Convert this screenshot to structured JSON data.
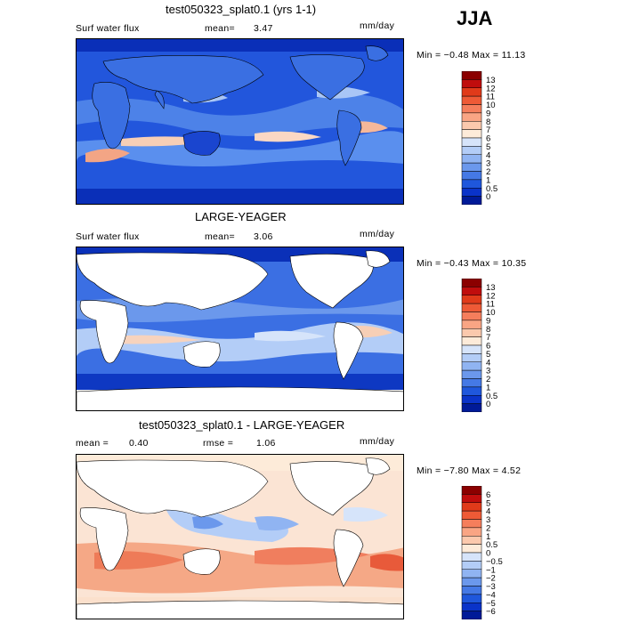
{
  "season": "JJA",
  "panels": [
    {
      "title": "test050323_splat0.1 (yrs 1-1)",
      "left_label": "Surf water flux",
      "mean_label": "mean=",
      "mean_value": "3.47",
      "units": "mm/day",
      "minmax": "Min =  −0.48 Max =  11.13",
      "colorbar": {
        "labels": [
          "13",
          "12",
          "11",
          "10",
          "9",
          "8",
          "7",
          "6",
          "5",
          "4",
          "3",
          "2",
          "1",
          "0.5",
          "0"
        ],
        "colors": [
          "#8b0000",
          "#c00d0d",
          "#e03a1a",
          "#ee5a36",
          "#f57e5c",
          "#f9a584",
          "#fbc9ad",
          "#fdebd9",
          "#d6e4fa",
          "#b3cdf7",
          "#90b4f2",
          "#6b98ec",
          "#4579e5",
          "#1f57dc",
          "#0a33c9",
          "#001a98"
        ]
      }
    },
    {
      "title": "LARGE-YEAGER",
      "left_label": "Surf water flux",
      "mean_label": "mean=",
      "mean_value": "3.06",
      "units": "mm/day",
      "minmax": "Min =  −0.43 Max =  10.35",
      "colorbar": {
        "labels": [
          "13",
          "12",
          "11",
          "10",
          "9",
          "8",
          "7",
          "6",
          "5",
          "4",
          "3",
          "2",
          "1",
          "0.5",
          "0"
        ],
        "colors": [
          "#8b0000",
          "#c00d0d",
          "#e03a1a",
          "#ee5a36",
          "#f57e5c",
          "#f9a584",
          "#fbc9ad",
          "#fdebd9",
          "#d6e4fa",
          "#b3cdf7",
          "#90b4f2",
          "#6b98ec",
          "#4579e5",
          "#1f57dc",
          "#0a33c9",
          "#001a98"
        ]
      }
    },
    {
      "title": "test050323_splat0.1 - LARGE-YEAGER",
      "mean_label": "mean =",
      "mean_value": "0.40",
      "rmse_label": "rmse =",
      "rmse_value": "1.06",
      "units": "mm/day",
      "minmax": "Min =  −7.80 Max =    4.52",
      "colorbar": {
        "labels": [
          "6",
          "5",
          "4",
          "3",
          "2",
          "1",
          "0.5",
          "0",
          "−0.5",
          "−1",
          "−2",
          "−3",
          "−4",
          "−5",
          "−6"
        ],
        "colors": [
          "#8b0000",
          "#c00d0d",
          "#e03a1a",
          "#ee5a36",
          "#f57e5c",
          "#f9a584",
          "#fbc9ad",
          "#fdebd9",
          "#d6e4fa",
          "#b3cdf7",
          "#90b4f2",
          "#6b98ec",
          "#4579e5",
          "#1f57dc",
          "#0a33c9",
          "#001a98"
        ]
      }
    }
  ]
}
